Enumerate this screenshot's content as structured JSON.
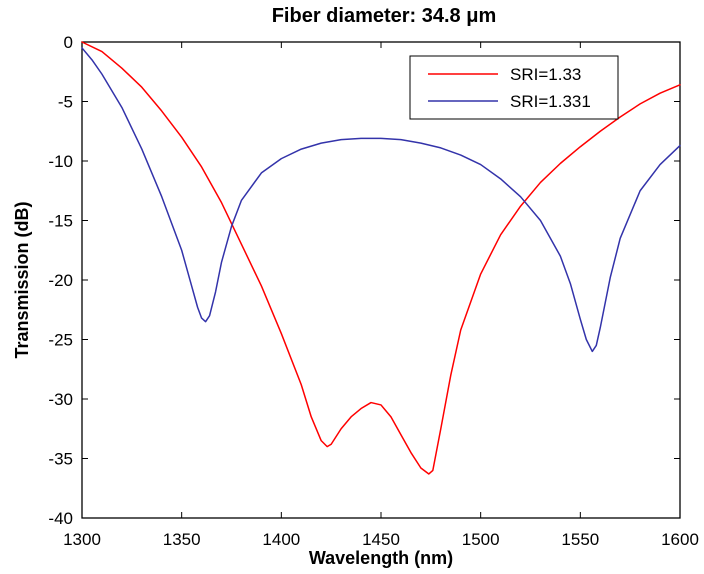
{
  "chart_data": {
    "type": "line",
    "title": "Fiber diameter: 34.8 μm",
    "xlabel": "Wavelength (nm)",
    "ylabel": "Transmission (dB)",
    "xlim": [
      1300,
      1600
    ],
    "ylim": [
      -40,
      0
    ],
    "xticks": [
      1300,
      1350,
      1400,
      1450,
      1500,
      1550,
      1600
    ],
    "yticks": [
      0,
      -5,
      -10,
      -15,
      -20,
      -25,
      -30,
      -35,
      -40
    ],
    "grid": false,
    "legend_position": "top-right",
    "series": [
      {
        "name": "SRI=1.33",
        "color": "#ff0000",
        "x": [
          1300,
          1310,
          1320,
          1330,
          1340,
          1350,
          1360,
          1370,
          1380,
          1390,
          1400,
          1410,
          1415,
          1420,
          1423,
          1425,
          1430,
          1435,
          1440,
          1445,
          1450,
          1455,
          1460,
          1465,
          1470,
          1474,
          1476,
          1480,
          1485,
          1490,
          1500,
          1510,
          1520,
          1530,
          1540,
          1550,
          1560,
          1570,
          1580,
          1590,
          1600
        ],
        "values": [
          0,
          -0.8,
          -2.2,
          -3.8,
          -5.8,
          -8.0,
          -10.5,
          -13.5,
          -17.0,
          -20.5,
          -24.5,
          -28.8,
          -31.5,
          -33.5,
          -34.0,
          -33.8,
          -32.5,
          -31.5,
          -30.8,
          -30.3,
          -30.5,
          -31.5,
          -33.0,
          -34.5,
          -35.8,
          -36.3,
          -36.0,
          -32.5,
          -28.0,
          -24.2,
          -19.5,
          -16.2,
          -13.8,
          -11.8,
          -10.2,
          -8.8,
          -7.5,
          -6.3,
          -5.2,
          -4.3,
          -3.6
        ]
      },
      {
        "name": "SRI=1.331",
        "color": "#3333aa",
        "x": [
          1300,
          1305,
          1310,
          1320,
          1330,
          1340,
          1350,
          1355,
          1358,
          1360,
          1362,
          1364,
          1367,
          1370,
          1375,
          1380,
          1390,
          1400,
          1410,
          1420,
          1430,
          1440,
          1450,
          1460,
          1470,
          1480,
          1490,
          1500,
          1510,
          1520,
          1530,
          1540,
          1545,
          1550,
          1553,
          1556,
          1558,
          1560,
          1565,
          1570,
          1580,
          1590,
          1600
        ],
        "values": [
          -0.5,
          -1.5,
          -2.7,
          -5.5,
          -9.0,
          -13.0,
          -17.5,
          -20.5,
          -22.3,
          -23.2,
          -23.5,
          -23.0,
          -21.0,
          -18.5,
          -15.5,
          -13.3,
          -11.0,
          -9.8,
          -9.0,
          -8.5,
          -8.2,
          -8.1,
          -8.1,
          -8.2,
          -8.5,
          -8.9,
          -9.5,
          -10.3,
          -11.5,
          -13.0,
          -15.0,
          -18.0,
          -20.3,
          -23.3,
          -25.0,
          -26.0,
          -25.5,
          -24.0,
          -19.8,
          -16.5,
          -12.5,
          -10.3,
          -8.7
        ]
      }
    ]
  }
}
